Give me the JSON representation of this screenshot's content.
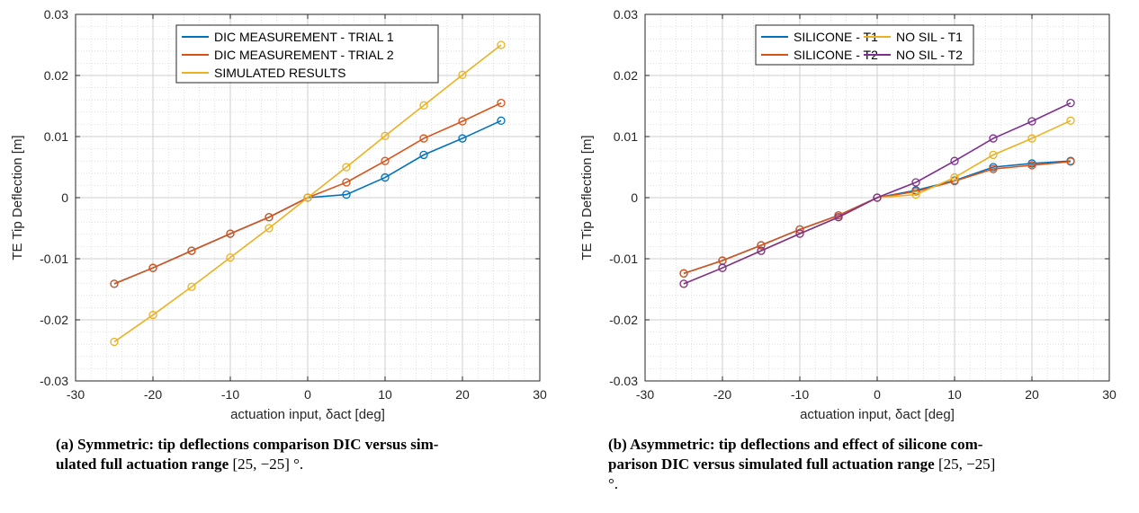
{
  "chart_data": [
    {
      "type": "line",
      "xlabel": "actuation input, δact [deg]",
      "ylabel": "TE Tip Deflection [m]",
      "xlim": [
        -30,
        30
      ],
      "ylim": [
        -0.03,
        0.03
      ],
      "xticks": [
        "-30",
        "-20",
        "-10",
        "0",
        "10",
        "20",
        "30"
      ],
      "yticks": [
        "-0.03",
        "-0.02",
        "-0.01",
        "0",
        "0.01",
        "0.02",
        "0.03"
      ],
      "grid": true,
      "minor_grid": true,
      "legend_position": "top",
      "x": [
        -25,
        -20,
        -15,
        -10,
        -5,
        0,
        5,
        10,
        15,
        20,
        25
      ],
      "series": [
        {
          "name": "DIC MEASUREMENT - TRIAL 1",
          "color": "#0072BD",
          "values": [
            -0.0141,
            -0.0115,
            -0.0087,
            -0.0059,
            -0.0032,
            0.0,
            0.0005,
            0.0033,
            0.007,
            0.0097,
            0.0126
          ]
        },
        {
          "name": "DIC MEASUREMENT - TRIAL 2",
          "color": "#D95319",
          "values": [
            -0.0141,
            -0.0115,
            -0.0087,
            -0.0059,
            -0.0032,
            0.0,
            0.0025,
            0.006,
            0.0097,
            0.0125,
            0.0155
          ]
        },
        {
          "name": "SIMULATED RESULTS",
          "color": "#EDB120",
          "values": [
            -0.0236,
            -0.0192,
            -0.0146,
            -0.0098,
            -0.005,
            0.0,
            0.005,
            0.0101,
            0.0151,
            0.0201,
            0.025
          ]
        }
      ]
    },
    {
      "type": "line",
      "xlabel": "actuation input, δact [deg]",
      "ylabel": "TE Tip Deflection [m]",
      "xlim": [
        -30,
        30
      ],
      "ylim": [
        -0.03,
        0.03
      ],
      "xticks": [
        "-30",
        "-20",
        "-10",
        "0",
        "10",
        "20",
        "30"
      ],
      "yticks": [
        "-0.03",
        "-0.02",
        "-0.01",
        "0",
        "0.01",
        "0.02",
        "0.03"
      ],
      "grid": true,
      "minor_grid": true,
      "legend_position": "top",
      "x": [
        -25,
        -20,
        -15,
        -10,
        -5,
        0,
        5,
        10,
        15,
        20,
        25
      ],
      "series": [
        {
          "name": "SILICONE - T1",
          "color": "#0072BD",
          "values": [
            -0.0124,
            -0.0103,
            -0.0078,
            -0.0052,
            -0.0029,
            0.0,
            0.0012,
            0.0028,
            0.005,
            0.0056,
            0.006
          ]
        },
        {
          "name": "SILICONE - T2",
          "color": "#D95319",
          "values": [
            -0.0124,
            -0.0103,
            -0.0078,
            -0.0052,
            -0.0029,
            0.0,
            0.001,
            0.0027,
            0.0047,
            0.0053,
            0.0059
          ]
        },
        {
          "name": "NO SIL - T1",
          "color": "#EDB120",
          "values": [
            -0.0141,
            -0.0115,
            -0.0087,
            -0.0059,
            -0.0032,
            0.0,
            0.0005,
            0.0033,
            0.007,
            0.0097,
            0.0126
          ]
        },
        {
          "name": "NO SIL - T2",
          "color": "#7E2F8E",
          "values": [
            -0.0141,
            -0.0115,
            -0.0087,
            -0.0059,
            -0.0032,
            0.0,
            0.0025,
            0.006,
            0.0097,
            0.0125,
            0.0155
          ]
        }
      ]
    }
  ],
  "captions": [
    {
      "label": "(a)",
      "text_line1": " Symmetric: tip deflections comparison DIC versus sim-",
      "text_line2": "ulated full actuation range ",
      "range": "[25, −25] °."
    },
    {
      "label": "(b)",
      "text_line1": " Asymmetric: tip deflections and effect of silicone com-",
      "text_line2": "parison DIC versus simulated full actuation range ",
      "range": "[25, −25]",
      "text_line3": "°."
    }
  ]
}
